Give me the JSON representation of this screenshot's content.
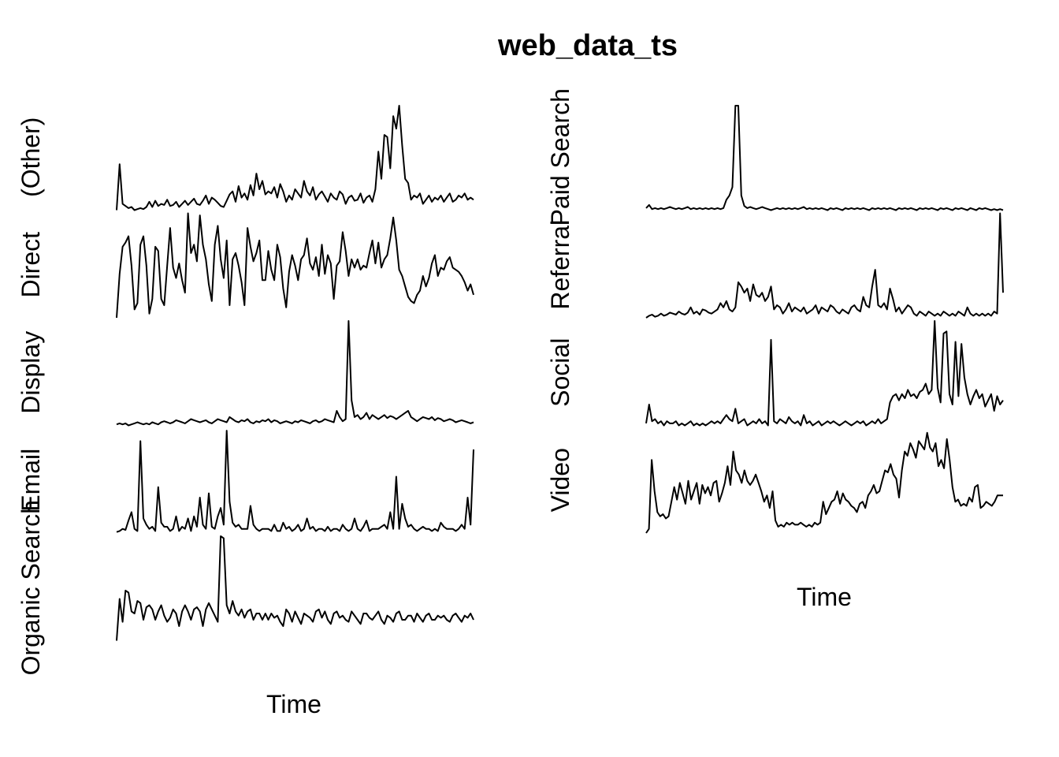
{
  "chart_data": {
    "type": "line",
    "title": "web_data_ts",
    "xlabel": "Time",
    "layout": "two-column stacked panels",
    "axes": false,
    "grid": false,
    "left_xlabel": "Time",
    "right_xlabel": "Time",
    "series": [
      {
        "name": "(Other)",
        "column": "left",
        "row": 0,
        "values": [
          0,
          44,
          6,
          4,
          2,
          3,
          0,
          1,
          2,
          1,
          3,
          8,
          3,
          9,
          4,
          6,
          5,
          10,
          4,
          5,
          8,
          3,
          6,
          9,
          5,
          8,
          11,
          6,
          5,
          9,
          14,
          6,
          12,
          10,
          7,
          4,
          3,
          9,
          15,
          18,
          8,
          23,
          12,
          16,
          10,
          24,
          14,
          35,
          20,
          28,
          15,
          18,
          16,
          22,
          12,
          25,
          18,
          8,
          14,
          10,
          20,
          16,
          12,
          28,
          18,
          14,
          22,
          10,
          15,
          18,
          13,
          8,
          16,
          12,
          10,
          18,
          15,
          6,
          12,
          14,
          9,
          10,
          16,
          7,
          12,
          14,
          8,
          20,
          56,
          30,
          72,
          70,
          40,
          90,
          78,
          100,
          62,
          30,
          26,
          10,
          14,
          12,
          16,
          6,
          10,
          14,
          8,
          12,
          10,
          14,
          8,
          12,
          16,
          8,
          10,
          14,
          12,
          16,
          10,
          12,
          10
        ],
        "ylim": [
          0,
          100
        ]
      },
      {
        "name": "Direct",
        "column": "left",
        "row": 1,
        "values": [
          0,
          42,
          68,
          72,
          78,
          50,
          8,
          14,
          70,
          78,
          50,
          4,
          18,
          68,
          64,
          18,
          12,
          50,
          86,
          48,
          38,
          52,
          36,
          24,
          100,
          62,
          70,
          54,
          98,
          70,
          56,
          32,
          16,
          70,
          88,
          56,
          38,
          74,
          12,
          56,
          62,
          50,
          34,
          12,
          86,
          68,
          54,
          62,
          74,
          36,
          36,
          64,
          46,
          36,
          70,
          58,
          28,
          10,
          44,
          60,
          50,
          36,
          56,
          60,
          76,
          52,
          46,
          58,
          40,
          70,
          42,
          60,
          52,
          18,
          50,
          54,
          82,
          64,
          40,
          56,
          48,
          56,
          46,
          50,
          48,
          62,
          74,
          52,
          72,
          48,
          56,
          60,
          76,
          96,
          74,
          46,
          40,
          30,
          20,
          16,
          14,
          22,
          26,
          40,
          30,
          38,
          52,
          60,
          40,
          48,
          46,
          54,
          58,
          48,
          46,
          44,
          40,
          34,
          26,
          32,
          22
        ],
        "ylim": [
          0,
          100
        ]
      },
      {
        "name": "Display",
        "column": "left",
        "row": 2,
        "values": [
          1,
          2,
          1,
          2,
          0,
          1,
          2,
          3,
          2,
          1,
          2,
          1,
          3,
          2,
          1,
          3,
          4,
          3,
          2,
          3,
          5,
          4,
          3,
          2,
          4,
          6,
          5,
          4,
          3,
          4,
          5,
          3,
          2,
          4,
          6,
          5,
          4,
          3,
          8,
          6,
          4,
          3,
          5,
          4,
          6,
          3,
          2,
          4,
          3,
          5,
          4,
          6,
          3,
          5,
          4,
          2,
          3,
          4,
          3,
          2,
          4,
          3,
          5,
          4,
          3,
          2,
          4,
          5,
          3,
          4,
          6,
          5,
          4,
          3,
          14,
          8,
          4,
          6,
          100,
          24,
          8,
          10,
          6,
          8,
          12,
          6,
          10,
          8,
          6,
          8,
          10,
          7,
          9,
          8,
          6,
          8,
          10,
          12,
          14,
          8,
          6,
          4,
          6,
          8,
          7,
          6,
          8,
          5,
          7,
          6,
          4,
          5,
          6,
          5,
          3,
          4,
          5,
          4,
          3,
          2,
          3
        ],
        "ylim": [
          0,
          100
        ]
      },
      {
        "name": "Email",
        "column": "left",
        "row": 3,
        "values": [
          1,
          2,
          4,
          3,
          12,
          20,
          4,
          2,
          88,
          14,
          8,
          4,
          6,
          2,
          44,
          10,
          6,
          6,
          2,
          4,
          16,
          2,
          6,
          4,
          14,
          2,
          16,
          6,
          34,
          8,
          4,
          38,
          6,
          4,
          16,
          24,
          8,
          98,
          30,
          10,
          6,
          8,
          4,
          4,
          4,
          26,
          8,
          4,
          2,
          4,
          4,
          4,
          2,
          8,
          2,
          2,
          10,
          4,
          6,
          2,
          4,
          8,
          2,
          4,
          14,
          4,
          6,
          2,
          4,
          4,
          2,
          6,
          2,
          4,
          4,
          2,
          8,
          4,
          2,
          4,
          14,
          4,
          2,
          6,
          12,
          2,
          4,
          4,
          4,
          6,
          8,
          4,
          20,
          4,
          54,
          4,
          28,
          14,
          6,
          8,
          4,
          2,
          4,
          6,
          4,
          4,
          2,
          4,
          2,
          10,
          6,
          4,
          4,
          4,
          2,
          4,
          8,
          4,
          34,
          8,
          80
        ],
        "ylim": [
          0,
          100
        ]
      },
      {
        "name": "Organic Search",
        "column": "left",
        "row": 4,
        "values": [
          0,
          40,
          18,
          48,
          46,
          28,
          26,
          38,
          36,
          20,
          32,
          34,
          30,
          20,
          28,
          34,
          24,
          18,
          22,
          30,
          26,
          14,
          28,
          34,
          28,
          20,
          30,
          32,
          28,
          14,
          30,
          36,
          30,
          24,
          18,
          100,
          98,
          34,
          26,
          38,
          28,
          24,
          30,
          22,
          28,
          30,
          20,
          26,
          26,
          20,
          26,
          20,
          26,
          22,
          24,
          18,
          14,
          30,
          26,
          18,
          28,
          22,
          16,
          26,
          24,
          22,
          18,
          28,
          30,
          22,
          28,
          20,
          16,
          26,
          28,
          22,
          24,
          20,
          18,
          28,
          24,
          20,
          16,
          26,
          26,
          22,
          20,
          24,
          28,
          20,
          16,
          24,
          22,
          18,
          26,
          28,
          20,
          20,
          24,
          24,
          18,
          26,
          22,
          18,
          24,
          26,
          20,
          20,
          24,
          22,
          24,
          20,
          18,
          24,
          26,
          22,
          18,
          24,
          22,
          26,
          20
        ],
        "ylim": [
          0,
          100
        ]
      },
      {
        "name": "Paid Search",
        "column": "right",
        "row": 0,
        "values": [
          2,
          5,
          1,
          2,
          1,
          2,
          1,
          2,
          3,
          2,
          1,
          2,
          1,
          2,
          3,
          1,
          2,
          1,
          2,
          1,
          2,
          1,
          2,
          1,
          2,
          1,
          2,
          10,
          14,
          22,
          100,
          100,
          14,
          4,
          2,
          3,
          2,
          1,
          2,
          3,
          2,
          1,
          0,
          1,
          2,
          1,
          2,
          1,
          2,
          1,
          2,
          1,
          2,
          3,
          1,
          2,
          1,
          2,
          1,
          2,
          1,
          0,
          2,
          1,
          2,
          1,
          0,
          2,
          1,
          2,
          1,
          2,
          1,
          2,
          1,
          0,
          2,
          1,
          2,
          1,
          2,
          1,
          2,
          1,
          0,
          2,
          1,
          2,
          1,
          2,
          1,
          0,
          2,
          1,
          2,
          1,
          2,
          1,
          0,
          2,
          1,
          2,
          1,
          0,
          2,
          1,
          2,
          1,
          0,
          2,
          1,
          0,
          2,
          1,
          2,
          1,
          0,
          1,
          0,
          1,
          0
        ],
        "ylim": [
          0,
          100
        ]
      },
      {
        "name": "Referral",
        "column": "right",
        "row": 1,
        "values": [
          0,
          2,
          3,
          1,
          2,
          4,
          2,
          3,
          5,
          4,
          3,
          6,
          4,
          3,
          5,
          10,
          4,
          6,
          3,
          8,
          7,
          5,
          4,
          6,
          8,
          14,
          10,
          16,
          8,
          6,
          10,
          34,
          30,
          24,
          28,
          16,
          32,
          22,
          20,
          24,
          16,
          20,
          30,
          8,
          12,
          10,
          4,
          8,
          14,
          6,
          10,
          8,
          6,
          10,
          4,
          6,
          8,
          12,
          4,
          10,
          8,
          6,
          12,
          10,
          6,
          4,
          8,
          6,
          4,
          10,
          12,
          8,
          6,
          20,
          12,
          10,
          30,
          46,
          12,
          10,
          14,
          8,
          28,
          18,
          6,
          10,
          4,
          8,
          12,
          10,
          4,
          2,
          6,
          4,
          2,
          6,
          4,
          2,
          4,
          2,
          6,
          4,
          2,
          4,
          2,
          6,
          4,
          2,
          10,
          4,
          2,
          4,
          2,
          4,
          2,
          4,
          2,
          6,
          4,
          100,
          24
        ],
        "ylim": [
          0,
          100
        ]
      },
      {
        "name": "Social",
        "column": "right",
        "row": 2,
        "values": [
          2,
          20,
          4,
          6,
          2,
          4,
          0,
          4,
          2,
          2,
          4,
          0,
          2,
          0,
          2,
          4,
          0,
          2,
          0,
          2,
          0,
          2,
          4,
          2,
          4,
          2,
          6,
          10,
          6,
          4,
          16,
          2,
          4,
          6,
          0,
          2,
          4,
          2,
          6,
          2,
          4,
          0,
          82,
          4,
          2,
          6,
          4,
          2,
          8,
          4,
          2,
          4,
          0,
          10,
          2,
          4,
          0,
          2,
          4,
          0,
          2,
          4,
          2,
          4,
          2,
          0,
          2,
          4,
          2,
          0,
          2,
          4,
          2,
          4,
          0,
          2,
          4,
          2,
          6,
          2,
          4,
          6,
          22,
          28,
          30,
          24,
          30,
          26,
          34,
          28,
          30,
          26,
          32,
          34,
          40,
          30,
          34,
          100,
          36,
          22,
          88,
          90,
          30,
          20,
          80,
          28,
          78,
          46,
          30,
          20,
          28,
          34,
          26,
          30,
          18,
          24,
          30,
          14,
          28,
          20,
          24
        ],
        "ylim": [
          0,
          100
        ]
      },
      {
        "name": "Video",
        "column": "right",
        "row": 3,
        "values": [
          0,
          4,
          70,
          40,
          20,
          16,
          18,
          14,
          16,
          30,
          44,
          32,
          48,
          38,
          28,
          50,
          32,
          40,
          48,
          28,
          46,
          38,
          44,
          36,
          48,
          50,
          30,
          38,
          48,
          64,
          46,
          78,
          60,
          56,
          48,
          60,
          50,
          46,
          50,
          56,
          48,
          40,
          30,
          36,
          24,
          40,
          12,
          6,
          8,
          6,
          10,
          8,
          10,
          8,
          8,
          10,
          8,
          6,
          8,
          6,
          10,
          8,
          10,
          30,
          18,
          24,
          30,
          32,
          40,
          28,
          38,
          32,
          30,
          26,
          24,
          20,
          28,
          30,
          24,
          36,
          40,
          46,
          38,
          40,
          50,
          60,
          58,
          66,
          56,
          52,
          34,
          60,
          78,
          74,
          86,
          80,
          72,
          88,
          84,
          80,
          96,
          82,
          78,
          86,
          64,
          70,
          62,
          90,
          70,
          44,
          30,
          32,
          26,
          28,
          26,
          34,
          30,
          44,
          46,
          24,
          26,
          30,
          28,
          26,
          30,
          36,
          36,
          36
        ],
        "ylim": [
          0,
          100
        ]
      }
    ]
  }
}
